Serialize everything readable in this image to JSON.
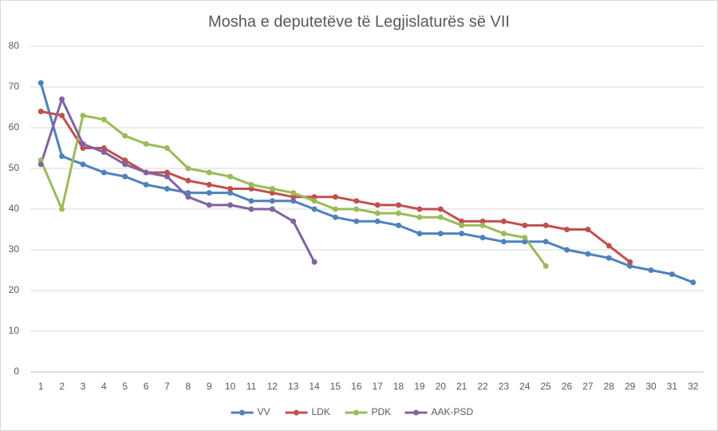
{
  "chart_data": {
    "type": "line",
    "title": "Mosha e deputetëve të Legjislaturës së VII",
    "categories": [
      1,
      2,
      3,
      4,
      5,
      6,
      7,
      8,
      9,
      10,
      11,
      12,
      13,
      14,
      15,
      16,
      17,
      18,
      19,
      20,
      21,
      22,
      23,
      24,
      25,
      26,
      27,
      28,
      29,
      30,
      31,
      32
    ],
    "series": [
      {
        "name": "VV",
        "color": "#4f81bd",
        "values": [
          71,
          53,
          51,
          49,
          48,
          46,
          45,
          44,
          44,
          44,
          42,
          42,
          42,
          40,
          38,
          37,
          37,
          36,
          34,
          34,
          34,
          33,
          32,
          32,
          32,
          30,
          29,
          28,
          26,
          25,
          24,
          22
        ]
      },
      {
        "name": "LDK",
        "color": "#c0504d",
        "values": [
          64,
          63,
          55,
          55,
          52,
          49,
          49,
          47,
          46,
          45,
          45,
          44,
          43,
          43,
          43,
          42,
          41,
          41,
          40,
          40,
          37,
          37,
          37,
          36,
          36,
          35,
          35,
          31,
          27,
          null,
          null,
          null
        ]
      },
      {
        "name": "PDK",
        "color": "#9bbb59",
        "values": [
          52,
          40,
          63,
          62,
          58,
          56,
          55,
          50,
          49,
          48,
          46,
          45,
          44,
          42,
          40,
          40,
          39,
          39,
          38,
          38,
          36,
          36,
          34,
          33,
          26,
          null,
          null,
          null,
          null,
          null,
          null,
          null
        ]
      },
      {
        "name": "AAK-PSD",
        "color": "#8064a2",
        "values": [
          51,
          67,
          56,
          54,
          51,
          49,
          48,
          43,
          41,
          41,
          40,
          40,
          37,
          27,
          null,
          null,
          null,
          null,
          null,
          null,
          null,
          null,
          null,
          null,
          null,
          null,
          null,
          null,
          null,
          null,
          null,
          null
        ]
      }
    ],
    "ylim": [
      0,
      80
    ],
    "yticks": [
      0,
      10,
      20,
      30,
      40,
      50,
      60,
      70,
      80
    ],
    "grid": true,
    "legend": "bottom"
  }
}
